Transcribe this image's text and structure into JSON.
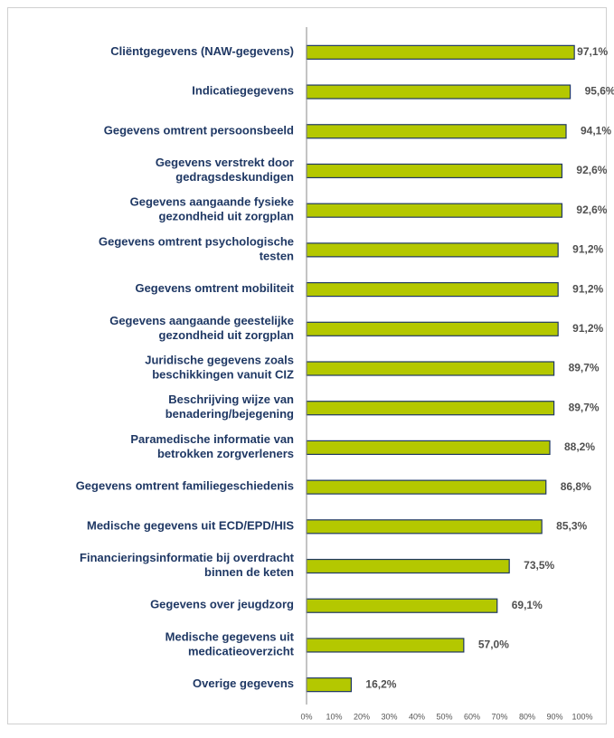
{
  "chart_data": {
    "type": "bar",
    "orientation": "horizontal",
    "categories": [
      [
        "Cliëntgegevens (NAW-gegevens)"
      ],
      [
        "Indicatiegegevens"
      ],
      [
        "Gegevens omtrent persoonsbeeld"
      ],
      [
        "Gegevens verstrekt door",
        "gedragsdeskundigen"
      ],
      [
        "Gegevens aangaande fysieke",
        "gezondheid uit zorgplan"
      ],
      [
        "Gegevens omtrent psychologische",
        "testen"
      ],
      [
        "Gegevens omtrent mobiliteit"
      ],
      [
        "Gegevens aangaande geestelijke",
        "gezondheid uit zorgplan"
      ],
      [
        "Juridische gegevens zoals",
        "beschikkingen vanuit CIZ"
      ],
      [
        "Beschrijving wijze van",
        "benadering/bejegening"
      ],
      [
        "Paramedische informatie van",
        "betrokken zorgverleners"
      ],
      [
        "Gegevens omtrent familiegeschiedenis"
      ],
      [
        "Medische gegevens uit ECD/EPD/HIS"
      ],
      [
        "Financieringsinformatie bij overdracht",
        "binnen de keten"
      ],
      [
        "Gegevens over jeugdzorg"
      ],
      [
        "Medische gegevens uit",
        "medicatieoverzicht"
      ],
      [
        "Overige gegevens"
      ]
    ],
    "values": [
      97.1,
      95.6,
      94.1,
      92.6,
      92.6,
      91.2,
      91.2,
      91.2,
      89.7,
      89.7,
      88.2,
      86.8,
      85.3,
      73.5,
      69.1,
      57.0,
      16.2
    ],
    "value_labels": [
      "97,1%",
      "95,6%",
      "94,1%",
      "92,6%",
      "92,6%",
      "91,2%",
      "91,2%",
      "91,2%",
      "89,7%",
      "89,7%",
      "88,2%",
      "86,8%",
      "85,3%",
      "73,5%",
      "69,1%",
      "57,0%",
      "16,2%"
    ],
    "color": "#b4c800",
    "xlim": [
      0,
      100
    ],
    "xticks": [
      {
        "value": 0,
        "label": "0%"
      },
      {
        "value": 10,
        "label": "10%"
      },
      {
        "value": 20,
        "label": "20%"
      },
      {
        "value": 30,
        "label": "30%"
      },
      {
        "value": 40,
        "label": "40%"
      },
      {
        "value": 50,
        "label": "50%"
      },
      {
        "value": 60,
        "label": "60%"
      },
      {
        "value": 70,
        "label": "70%"
      },
      {
        "value": 80,
        "label": "80%"
      },
      {
        "value": 90,
        "label": "90%"
      },
      {
        "value": 100,
        "label": "100%"
      }
    ],
    "grid": false
  }
}
